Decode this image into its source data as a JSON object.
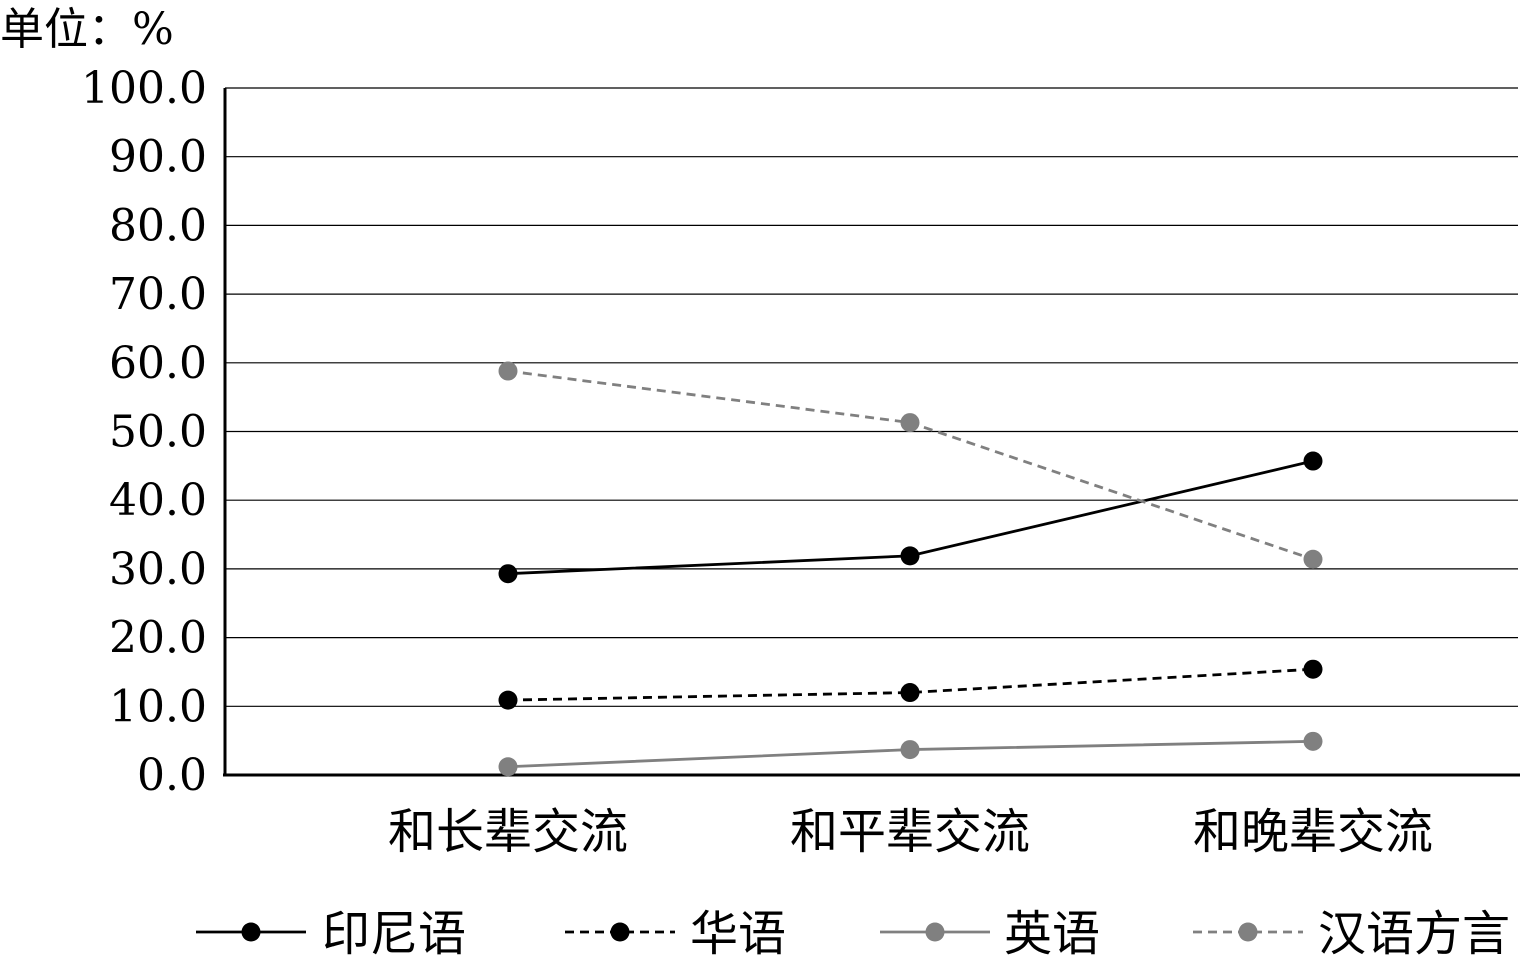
{
  "chart_data": {
    "type": "line",
    "title": "",
    "unit_label": "单位：%",
    "xlabel": "",
    "ylabel": "",
    "ylim": [
      0,
      100
    ],
    "yticks": [
      "0.0",
      "10.0",
      "20.0",
      "30.0",
      "40.0",
      "50.0",
      "60.0",
      "70.0",
      "80.0",
      "90.0",
      "100.0"
    ],
    "grid": true,
    "legend_position": "bottom",
    "categories": [
      "和长辈交流",
      "和平辈交流",
      "和晚辈交流"
    ],
    "series": [
      {
        "name": "印尼语",
        "values": [
          29.3,
          31.9,
          45.7
        ],
        "color": "#000000",
        "dash": "solid"
      },
      {
        "name": "华语",
        "values": [
          10.9,
          12.0,
          15.4
        ],
        "color": "#000000",
        "dash": "dashed"
      },
      {
        "name": "英语",
        "values": [
          1.2,
          3.7,
          4.9
        ],
        "color": "#808080",
        "dash": "solid"
      },
      {
        "name": "汉语方言",
        "values": [
          58.8,
          51.3,
          31.4
        ],
        "color": "#808080",
        "dash": "dashed"
      }
    ]
  }
}
